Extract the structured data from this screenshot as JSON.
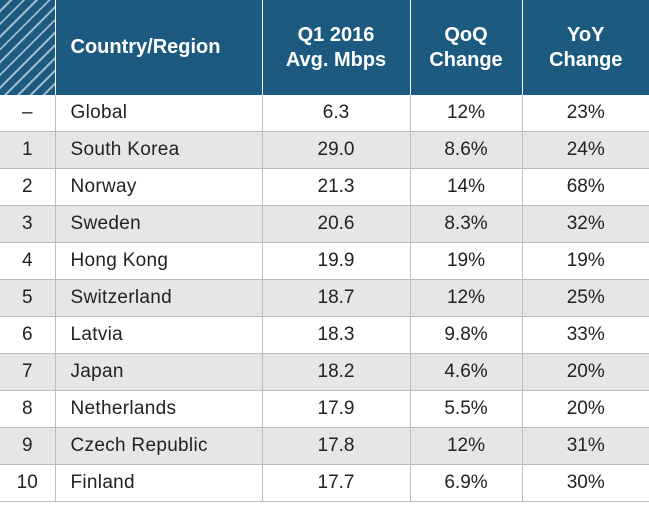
{
  "chart_data": {
    "type": "table",
    "columns": [
      "",
      "Country/Region",
      "Q1 2016\nAvg. Mbps",
      "QoQ\nChange",
      "YoY\nChange"
    ],
    "header": {
      "country": "Country/Region",
      "speed_line1": "Q1 2016",
      "speed_line2": "Avg. Mbps",
      "qoq_line1": "QoQ",
      "qoq_line2": "Change",
      "yoy_line1": "YoY",
      "yoy_line2": "Change"
    },
    "rows": [
      {
        "rank": "–",
        "country": "Global",
        "mbps": "6.3",
        "qoq": "12%",
        "yoy": "23%"
      },
      {
        "rank": "1",
        "country": "South Korea",
        "mbps": "29.0",
        "qoq": "8.6%",
        "yoy": "24%"
      },
      {
        "rank": "2",
        "country": "Norway",
        "mbps": "21.3",
        "qoq": "14%",
        "yoy": "68%"
      },
      {
        "rank": "3",
        "country": "Sweden",
        "mbps": "20.6",
        "qoq": "8.3%",
        "yoy": "32%"
      },
      {
        "rank": "4",
        "country": "Hong Kong",
        "mbps": "19.9",
        "qoq": "19%",
        "yoy": "19%"
      },
      {
        "rank": "5",
        "country": "Switzerland",
        "mbps": "18.7",
        "qoq": "12%",
        "yoy": "25%"
      },
      {
        "rank": "6",
        "country": "Latvia",
        "mbps": "18.3",
        "qoq": "9.8%",
        "yoy": "33%"
      },
      {
        "rank": "7",
        "country": "Japan",
        "mbps": "18.2",
        "qoq": "4.6%",
        "yoy": "20%"
      },
      {
        "rank": "8",
        "country": "Netherlands",
        "mbps": "17.9",
        "qoq": "5.5%",
        "yoy": "20%"
      },
      {
        "rank": "9",
        "country": "Czech Republic",
        "mbps": "17.8",
        "qoq": "12%",
        "yoy": "31%"
      },
      {
        "rank": "10",
        "country": "Finland",
        "mbps": "17.7",
        "qoq": "6.9%",
        "yoy": "30%"
      }
    ]
  },
  "colors": {
    "header_bg": "#1d5a80",
    "header_text": "#ffffff",
    "stripe_bg": "#e6e6e6",
    "grid_line": "#bdbdbd",
    "body_text": "#222222"
  }
}
